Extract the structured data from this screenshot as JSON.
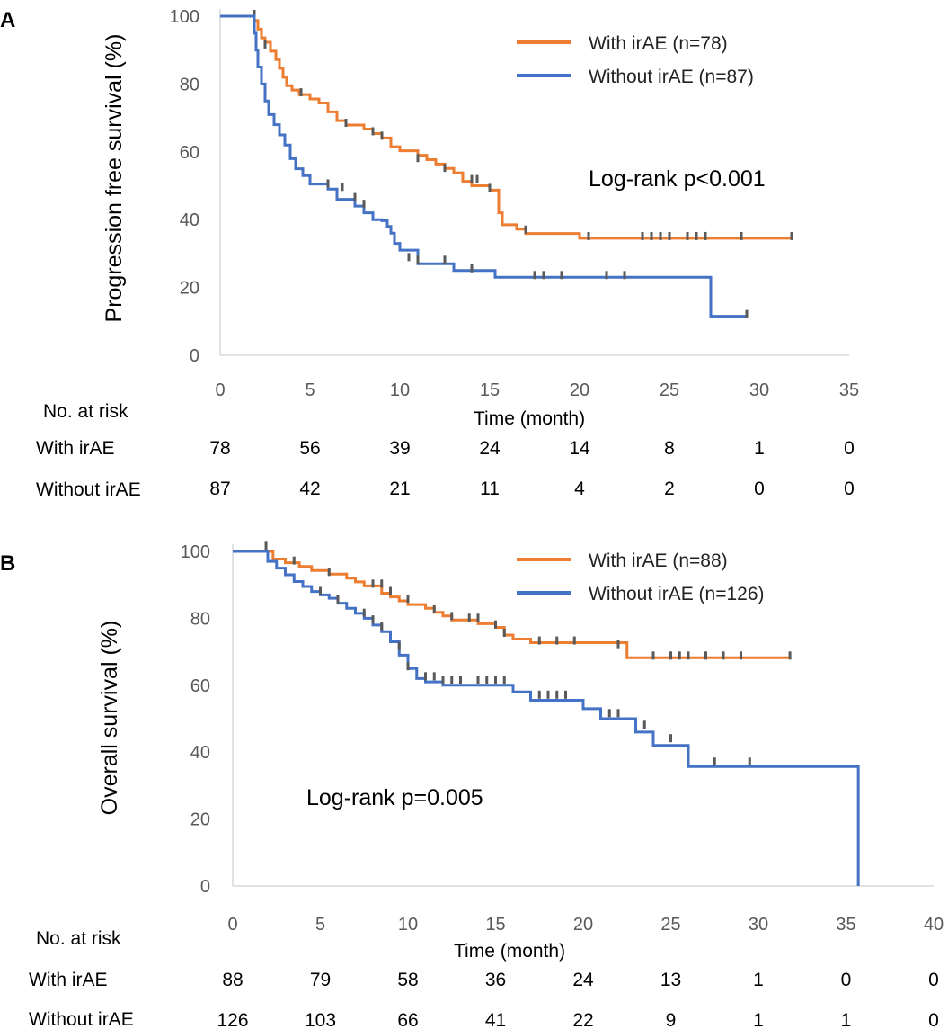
{
  "colors": {
    "with": "#ED7D31",
    "without": "#4472C4",
    "censor": "#595959",
    "axis": "#D9D9D9"
  },
  "chart_data": [
    {
      "type": "line",
      "panel": "A",
      "xlabel": "Time (month)",
      "ylabel": "Progression free survival (%)",
      "xlim": [
        0,
        35
      ],
      "ylim": [
        0,
        100
      ],
      "xticks": [
        0,
        5,
        10,
        15,
        20,
        25,
        30,
        35
      ],
      "yticks": [
        0,
        20,
        40,
        60,
        80,
        100
      ],
      "annotation": "Log-rank p<0.001",
      "legend_position": "top-right",
      "series": [
        {
          "name": "With irAE (n=78)",
          "key": "with",
          "steps": [
            [
              0,
              100
            ],
            [
              1.9,
              100
            ],
            [
              1.9,
              98.7
            ],
            [
              2.1,
              96.2
            ],
            [
              2.3,
              93.6
            ],
            [
              2.5,
              92.3
            ],
            [
              2.8,
              89.7
            ],
            [
              3.1,
              87.2
            ],
            [
              3.3,
              84.6
            ],
            [
              3.5,
              82
            ],
            [
              3.7,
              79.5
            ],
            [
              4.0,
              78.2
            ],
            [
              4.4,
              76.9
            ],
            [
              5.0,
              75.6
            ],
            [
              5.5,
              74.4
            ],
            [
              6.0,
              71.8
            ],
            [
              6.5,
              69.2
            ],
            [
              7.0,
              67.9
            ],
            [
              8.0,
              66.7
            ],
            [
              8.5,
              65.4
            ],
            [
              9.0,
              64.1
            ],
            [
              9.5,
              61.5
            ],
            [
              10.0,
              60.3
            ],
            [
              11.0,
              59
            ],
            [
              11.5,
              57.7
            ],
            [
              12.0,
              56.4
            ],
            [
              12.5,
              55.1
            ],
            [
              13.0,
              53.8
            ],
            [
              13.5,
              51.3
            ],
            [
              14.0,
              50
            ],
            [
              15.0,
              48.7
            ],
            [
              15.5,
              42
            ],
            [
              15.7,
              38.5
            ],
            [
              16.5,
              37.2
            ],
            [
              17.0,
              35.9
            ],
            [
              20.0,
              34.5
            ],
            [
              31.8,
              34.5
            ]
          ],
          "censors": [
            [
              1.9,
              100
            ],
            [
              2.5,
              91
            ],
            [
              4.5,
              76.9
            ],
            [
              7.0,
              67.9
            ],
            [
              8.5,
              65.4
            ],
            [
              9.0,
              64.1
            ],
            [
              11.0,
              57.5
            ],
            [
              12.5,
              54.6
            ],
            [
              14.0,
              51.3
            ],
            [
              14.3,
              51.3
            ],
            [
              15.0,
              48.7
            ],
            [
              17.0,
              36.4
            ],
            [
              20.5,
              34.5
            ],
            [
              23.5,
              34.5
            ],
            [
              24.0,
              34.5
            ],
            [
              24.5,
              34.5
            ],
            [
              25.0,
              34.5
            ],
            [
              26.0,
              34.5
            ],
            [
              26.5,
              34.5
            ],
            [
              27.0,
              34.5
            ],
            [
              29.0,
              34.5
            ],
            [
              31.8,
              34.5
            ]
          ]
        },
        {
          "name": "Without irAE (n=87)",
          "key": "without",
          "steps": [
            [
              0,
              100
            ],
            [
              1.8,
              100
            ],
            [
              1.9,
              95
            ],
            [
              2.0,
              90
            ],
            [
              2.1,
              85
            ],
            [
              2.3,
              80
            ],
            [
              2.5,
              75
            ],
            [
              2.7,
              71
            ],
            [
              3.0,
              68
            ],
            [
              3.3,
              65
            ],
            [
              3.6,
              62
            ],
            [
              3.9,
              58
            ],
            [
              4.2,
              55
            ],
            [
              4.6,
              53
            ],
            [
              5.0,
              50.5
            ],
            [
              6.0,
              49
            ],
            [
              6.5,
              46
            ],
            [
              7.5,
              44
            ],
            [
              8.0,
              42
            ],
            [
              8.5,
              40
            ],
            [
              9.0,
              39.7
            ],
            [
              9.3,
              38
            ],
            [
              9.5,
              36
            ],
            [
              9.7,
              33
            ],
            [
              10.0,
              31
            ],
            [
              11.0,
              27
            ],
            [
              13.0,
              25
            ],
            [
              15.3,
              23
            ],
            [
              27.3,
              23
            ],
            [
              27.3,
              11.5
            ],
            [
              29.3,
              11.5
            ]
          ],
          "censors": [
            [
              6.0,
              50
            ],
            [
              6.8,
              49
            ],
            [
              7.5,
              46
            ],
            [
              8.0,
              44
            ],
            [
              10.5,
              28.3
            ],
            [
              11.0,
              27.5
            ],
            [
              12.5,
              27.5
            ],
            [
              14.0,
              25
            ],
            [
              17.5,
              23
            ],
            [
              18.0,
              23
            ],
            [
              19.0,
              23
            ],
            [
              21.5,
              23
            ],
            [
              22.5,
              23
            ],
            [
              29.3,
              11.5
            ]
          ]
        }
      ],
      "risk_table": {
        "title": "No. at risk",
        "times": [
          0,
          5,
          10,
          15,
          20,
          25,
          30,
          35
        ],
        "rows": [
          {
            "label": "With irAE",
            "values": [
              "78",
              "56",
              "39",
              "24",
              "14",
              "8",
              "1",
              "0"
            ]
          },
          {
            "label": "Without irAE",
            "values": [
              "87",
              "42",
              "21",
              "11",
              "4",
              "2",
              "0",
              "0"
            ]
          }
        ]
      }
    },
    {
      "type": "line",
      "panel": "B",
      "xlabel": "Time (month)",
      "ylabel": "Overall survival (%)",
      "xlim": [
        0,
        40
      ],
      "ylim": [
        0,
        100
      ],
      "xticks": [
        0,
        5,
        10,
        15,
        20,
        25,
        30,
        35,
        40
      ],
      "yticks": [
        0,
        20,
        40,
        60,
        80,
        100
      ],
      "annotation": "Log-rank p=0.005",
      "legend_position": "top-right",
      "series": [
        {
          "name": "With irAE (n=88)",
          "key": "with",
          "steps": [
            [
              0,
              100
            ],
            [
              1.9,
              100
            ],
            [
              2.3,
              97.7
            ],
            [
              3.0,
              96.6
            ],
            [
              3.8,
              95.5
            ],
            [
              4.5,
              94.3
            ],
            [
              5.5,
              93.2
            ],
            [
              6.5,
              92
            ],
            [
              7.0,
              90.9
            ],
            [
              7.5,
              89.7
            ],
            [
              8.5,
              87.5
            ],
            [
              9.0,
              86.4
            ],
            [
              9.5,
              85.2
            ],
            [
              10.0,
              84.1
            ],
            [
              11.0,
              83
            ],
            [
              11.5,
              81.8
            ],
            [
              12.0,
              80.7
            ],
            [
              12.5,
              79.5
            ],
            [
              14.0,
              78.4
            ],
            [
              15.0,
              77.3
            ],
            [
              15.5,
              75
            ],
            [
              16.0,
              73.8
            ],
            [
              17.0,
              72.7
            ],
            [
              22.5,
              71.6
            ],
            [
              22.5,
              68.2
            ],
            [
              31.8,
              68.2
            ]
          ],
          "censors": [
            [
              1.9,
              101
            ],
            [
              3.5,
              96.6
            ],
            [
              5.5,
              93.2
            ],
            [
              8.0,
              89.7
            ],
            [
              8.5,
              89.7
            ],
            [
              9.0,
              87.5
            ],
            [
              10.0,
              85.2
            ],
            [
              11.5,
              82
            ],
            [
              12.5,
              80
            ],
            [
              13.5,
              79.5
            ],
            [
              14.0,
              79.5
            ],
            [
              15.0,
              77.5
            ],
            [
              15.5,
              75
            ],
            [
              17.5,
              72.7
            ],
            [
              18.5,
              72.7
            ],
            [
              19.5,
              72.7
            ],
            [
              22.0,
              71.6
            ],
            [
              24.0,
              68.2
            ],
            [
              25.0,
              68.2
            ],
            [
              25.5,
              68.2
            ],
            [
              26.0,
              68.2
            ],
            [
              27.0,
              68.2
            ],
            [
              28.0,
              68.2
            ],
            [
              29.0,
              68.2
            ],
            [
              31.8,
              68.2
            ]
          ]
        },
        {
          "name": "Without irAE (n=126)",
          "key": "without",
          "steps": [
            [
              0,
              100
            ],
            [
              1.8,
              100
            ],
            [
              2.0,
              97
            ],
            [
              2.5,
              95
            ],
            [
              3.0,
              93
            ],
            [
              3.5,
              91
            ],
            [
              4.0,
              89.5
            ],
            [
              4.5,
              88
            ],
            [
              5.0,
              87
            ],
            [
              5.5,
              86
            ],
            [
              6.0,
              84.5
            ],
            [
              6.5,
              83
            ],
            [
              7.0,
              81.5
            ],
            [
              7.5,
              80
            ],
            [
              8.0,
              78
            ],
            [
              8.5,
              76
            ],
            [
              9.0,
              73
            ],
            [
              9.5,
              69
            ],
            [
              10.0,
              65
            ],
            [
              10.5,
              62
            ],
            [
              11.0,
              61
            ],
            [
              12.0,
              60
            ],
            [
              16.0,
              58
            ],
            [
              17.0,
              55.5
            ],
            [
              20.0,
              53
            ],
            [
              21.0,
              50
            ],
            [
              23.0,
              46
            ],
            [
              24.0,
              42
            ],
            [
              26.0,
              35.7
            ],
            [
              35.7,
              35.7
            ],
            [
              35.7,
              0
            ]
          ],
          "censors": [
            [
              5.0,
              87.5
            ],
            [
              6.0,
              85
            ],
            [
              7.5,
              81
            ],
            [
              8.0,
              79
            ],
            [
              8.5,
              77
            ],
            [
              9.5,
              71
            ],
            [
              10.0,
              65
            ],
            [
              11.0,
              62
            ],
            [
              11.5,
              62
            ],
            [
              12.0,
              61
            ],
            [
              12.5,
              61
            ],
            [
              13.0,
              61
            ],
            [
              14.0,
              61
            ],
            [
              14.5,
              61
            ],
            [
              15.0,
              61
            ],
            [
              15.5,
              61
            ],
            [
              17.5,
              56.5
            ],
            [
              18.0,
              56.5
            ],
            [
              18.5,
              56.5
            ],
            [
              19.0,
              56.5
            ],
            [
              21.5,
              51
            ],
            [
              22.0,
              51
            ],
            [
              23.5,
              47.5
            ],
            [
              25.0,
              43.5
            ],
            [
              27.5,
              36.5
            ],
            [
              29.5,
              36.5
            ]
          ]
        }
      ],
      "risk_table": {
        "title": "No. at risk",
        "times": [
          0,
          5,
          10,
          15,
          20,
          25,
          30,
          35,
          40
        ],
        "rows": [
          {
            "label": "With irAE",
            "values": [
              "88",
              "79",
              "58",
              "36",
              "24",
              "13",
              "1",
              "0",
              "0"
            ]
          },
          {
            "label": "Without irAE",
            "values": [
              "126",
              "103",
              "66",
              "41",
              "22",
              "9",
              "1",
              "1",
              "0"
            ]
          }
        ]
      }
    }
  ]
}
